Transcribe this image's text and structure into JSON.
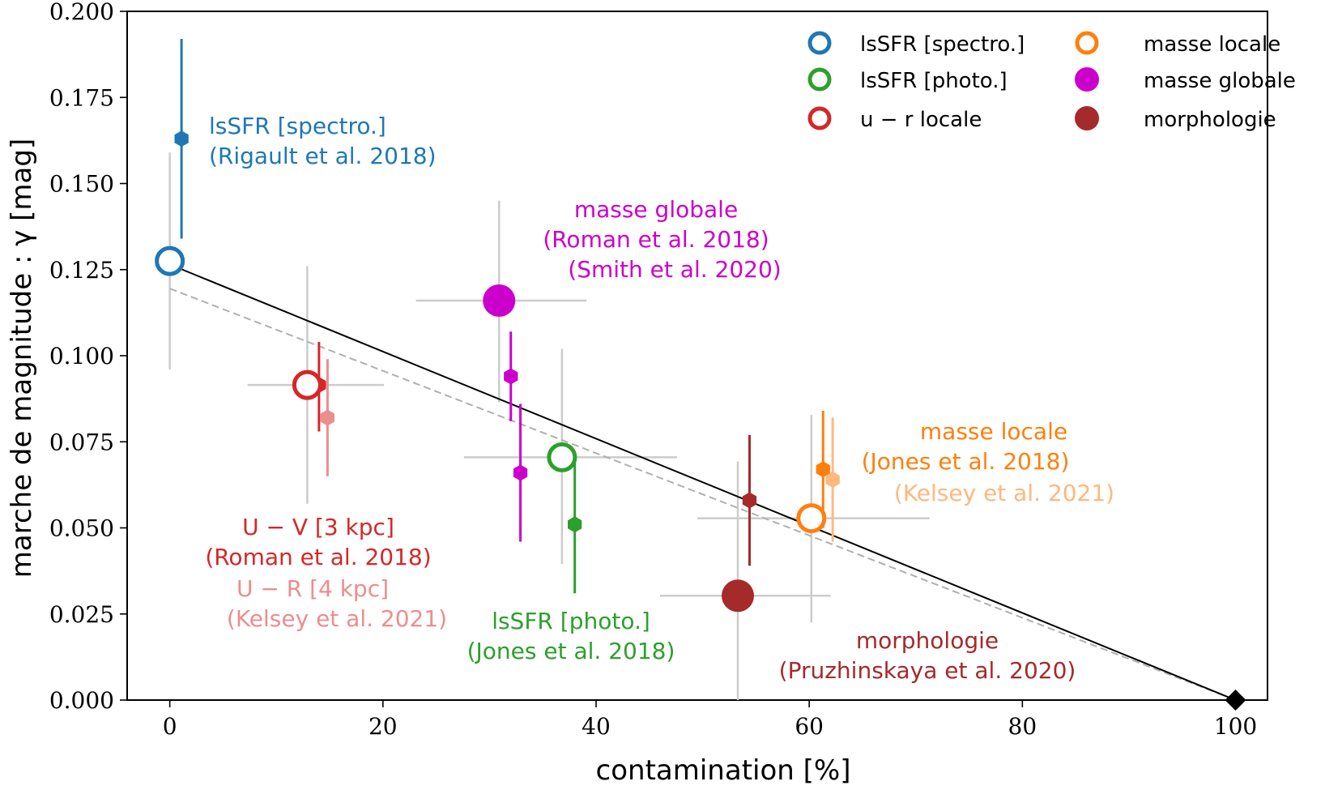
{
  "chart_data": {
    "type": "scatter",
    "xlabel": "contamination [%]",
    "ylabel": "marche de magnitude : γ [mag]",
    "xlim": [
      -4,
      103
    ],
    "ylim": [
      0,
      0.2
    ],
    "x_ticks": [
      0,
      20,
      40,
      60,
      80,
      100
    ],
    "x_tick_labels": [
      "0",
      "20",
      "40",
      "60",
      "80",
      "100"
    ],
    "y_ticks": [
      0,
      0.025,
      0.05,
      0.075,
      0.1,
      0.125,
      0.15,
      0.175,
      0.2
    ],
    "y_tick_labels": [
      "0.000",
      "0.025",
      "0.050",
      "0.075",
      "0.100",
      "0.125",
      "0.150",
      "0.175",
      "0.200"
    ],
    "grid": false,
    "legend_position": "top-right",
    "colors": {
      "lssfr_spectro": "#1f77b4",
      "lssfr_photo": "#2ca02c",
      "ur_locale": "#d62728",
      "ur_light": "#eb8e8e",
      "masse_locale": "#ff7f0e",
      "masse_locale_light": "#ffb87e",
      "masse_globale": "#cc00cc",
      "morphologie": "#a52a2a",
      "gray_err": "#cccccc",
      "fit_line": "#000000",
      "dashed_line": "#b0b0b0"
    },
    "fit_line": {
      "x": [
        0,
        100
      ],
      "y": [
        0.1265,
        0.0
      ]
    },
    "dashed_line": {
      "x": [
        0,
        100
      ],
      "y": [
        0.1195,
        0.0
      ]
    },
    "anchor_point": {
      "x": 100,
      "y": 0.0,
      "marker": "diamond"
    },
    "legend": [
      {
        "label": "lsSFR [spectro.]",
        "color": "#1f77b4",
        "filled": false
      },
      {
        "label": "lsSFR [photo.]",
        "color": "#2ca02c",
        "filled": false
      },
      {
        "label": "u − r locale",
        "color": "#d62728",
        "filled": false
      },
      {
        "label": "masse locale",
        "color": "#ff7f0e",
        "filled": false
      },
      {
        "label": "masse globale",
        "color": "#cc00cc",
        "filled": true
      },
      {
        "label": "morphologie",
        "color": "#a52a2a",
        "filled": true
      }
    ],
    "main_points": [
      {
        "name": "lsSFR [spectro.]",
        "color": "#1f77b4",
        "filled": false,
        "x": 0,
        "y": 0.1275,
        "xerr": [
          0,
          0
        ],
        "yerr": [
          0.096,
          0.159
        ]
      },
      {
        "name": "u − r locale",
        "color": "#d62728",
        "filled": false,
        "x": 12.9,
        "y": 0.0915,
        "xerr": [
          7.3,
          20.1
        ],
        "yerr": [
          0.057,
          0.126
        ]
      },
      {
        "name": "masse globale",
        "color": "#cc00cc",
        "filled": true,
        "x": 30.9,
        "y": 0.116,
        "xerr": [
          23.1,
          39.1
        ],
        "yerr": [
          0.0865,
          0.145
        ]
      },
      {
        "name": "lsSFR [photo.]",
        "color": "#2ca02c",
        "filled": false,
        "x": 36.8,
        "y": 0.0705,
        "xerr": [
          27.6,
          47.6
        ],
        "yerr": [
          0.0395,
          0.102
        ]
      },
      {
        "name": "morphologie",
        "color": "#a52a2a",
        "filled": true,
        "x": 53.3,
        "y": 0.0303,
        "xerr": [
          46.0,
          62.0
        ],
        "yerr": [
          0.0,
          0.0693
        ]
      },
      {
        "name": "masse locale",
        "color": "#ff7f0e",
        "filled": false,
        "x": 60.2,
        "y": 0.0528,
        "xerr": [
          49.5,
          71.3
        ],
        "yerr": [
          0.0225,
          0.0828
        ]
      }
    ],
    "studies": [
      {
        "color": "#1f77b4",
        "x": 1.1,
        "y": 0.163,
        "yerr": [
          0.134,
          0.192
        ]
      },
      {
        "color": "#d62728",
        "x": 14.0,
        "y": 0.0915,
        "yerr": [
          0.078,
          0.104
        ]
      },
      {
        "color": "#eb8e8e",
        "x": 14.8,
        "y": 0.082,
        "yerr": [
          0.065,
          0.099
        ]
      },
      {
        "color": "#cc00cc",
        "x": 32.0,
        "y": 0.094,
        "yerr": [
          0.081,
          0.107
        ]
      },
      {
        "color": "#cc00cc",
        "x": 32.9,
        "y": 0.066,
        "yerr": [
          0.046,
          0.086
        ]
      },
      {
        "color": "#2ca02c",
        "x": 38.0,
        "y": 0.051,
        "yerr": [
          0.031,
          0.071
        ]
      },
      {
        "color": "#a52a2a",
        "x": 54.4,
        "y": 0.058,
        "yerr": [
          0.039,
          0.077
        ]
      },
      {
        "color": "#ff7f0e",
        "x": 61.3,
        "y": 0.067,
        "yerr": [
          0.05,
          0.084
        ]
      },
      {
        "color": "#ffb87e",
        "x": 62.2,
        "y": 0.064,
        "yerr": [
          0.046,
          0.082
        ]
      }
    ],
    "annotations": [
      {
        "lines": [
          "lsSFR [spectro.]",
          "(Rigault et al. 2018)"
        ],
        "color": "#1f77b4"
      },
      {
        "lines": [
          "masse globale",
          "(Roman et al. 2018)",
          "(Smith et al. 2020)"
        ],
        "color": "#cc00cc"
      },
      {
        "lines": [
          "U − V [3 kpc]",
          "(Roman et al. 2018)"
        ],
        "color": "#d62728"
      },
      {
        "lines": [
          "U − R [4 kpc]",
          "(Kelsey et al. 2021)"
        ],
        "color": "#eb8e8e"
      },
      {
        "lines": [
          "lsSFR [photo.]",
          "(Jones et al. 2018)"
        ],
        "color": "#2ca02c"
      },
      {
        "lines": [
          "masse locale",
          "(Jones et al. 2018)"
        ],
        "color": "#ff7f0e"
      },
      {
        "lines": [
          "(Kelsey et al. 2021)"
        ],
        "color": "#ffb87e"
      },
      {
        "lines": [
          "morphologie",
          "(Pruzhinskaya et al. 2020)"
        ],
        "color": "#a52a2a"
      }
    ]
  }
}
